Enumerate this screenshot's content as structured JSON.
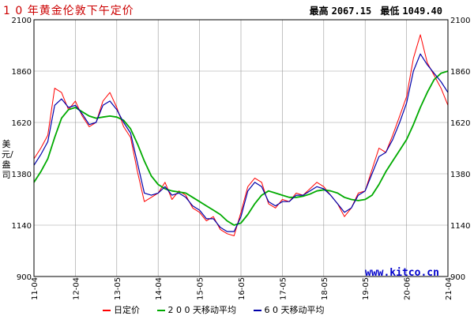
{
  "header": {
    "title": "1 0 年黄金伦敦下午定价",
    "high_label": "最高",
    "high_value": "2067.15",
    "low_label": "最低",
    "low_value": "1049.40"
  },
  "watermark": "www.kitco.cn",
  "colors": {
    "daily": "#ff0000",
    "ma200": "#00aa00",
    "ma60": "#0000aa",
    "grid": "#999999",
    "frame": "#000000"
  },
  "chart_data": {
    "type": "line",
    "ylabel": "美元/盎司",
    "ylim": [
      900,
      2100
    ],
    "y_ticks": [
      "900",
      "1140",
      "1380",
      "1620",
      "1860",
      "2100"
    ],
    "x_ticks": [
      "11-04",
      "12-04",
      "13-05",
      "14-04",
      "15-05",
      "16-05",
      "17-05",
      "18-05",
      "19-05",
      "20-06",
      "21-04"
    ],
    "grid": true,
    "series": [
      {
        "name": "日定价",
        "values": [
          1450,
          1500,
          1560,
          1780,
          1760,
          1680,
          1720,
          1650,
          1600,
          1620,
          1720,
          1760,
          1690,
          1600,
          1550,
          1390,
          1250,
          1270,
          1290,
          1340,
          1260,
          1300,
          1280,
          1220,
          1200,
          1160,
          1180,
          1120,
          1100,
          1090,
          1200,
          1320,
          1360,
          1340,
          1240,
          1220,
          1260,
          1250,
          1290,
          1280,
          1310,
          1340,
          1320,
          1280,
          1240,
          1180,
          1220,
          1290,
          1300,
          1400,
          1500,
          1480,
          1560,
          1650,
          1740,
          1920,
          2030,
          1900,
          1840,
          1780,
          1700
        ]
      },
      {
        "name": "2 0 0 天移动平均",
        "values": [
          1340,
          1390,
          1450,
          1550,
          1640,
          1680,
          1690,
          1670,
          1650,
          1640,
          1645,
          1650,
          1645,
          1630,
          1590,
          1520,
          1440,
          1370,
          1330,
          1310,
          1300,
          1295,
          1290,
          1270,
          1250,
          1230,
          1210,
          1190,
          1160,
          1140,
          1150,
          1190,
          1240,
          1280,
          1300,
          1290,
          1280,
          1270,
          1270,
          1275,
          1285,
          1300,
          1305,
          1300,
          1290,
          1270,
          1260,
          1255,
          1260,
          1280,
          1330,
          1390,
          1440,
          1490,
          1540,
          1610,
          1690,
          1760,
          1820,
          1850,
          1860
        ]
      },
      {
        "name": "6 0 天移动平均",
        "values": [
          1420,
          1470,
          1530,
          1700,
          1730,
          1690,
          1700,
          1660,
          1610,
          1620,
          1700,
          1720,
          1680,
          1620,
          1570,
          1430,
          1290,
          1280,
          1290,
          1320,
          1280,
          1290,
          1270,
          1230,
          1210,
          1170,
          1170,
          1130,
          1110,
          1110,
          1180,
          1300,
          1340,
          1320,
          1250,
          1230,
          1250,
          1250,
          1280,
          1280,
          1300,
          1320,
          1310,
          1280,
          1240,
          1200,
          1220,
          1280,
          1300,
          1380,
          1460,
          1480,
          1540,
          1620,
          1710,
          1860,
          1940,
          1890,
          1850,
          1810,
          1760
        ]
      }
    ]
  },
  "legend": [
    {
      "label": "日定价",
      "color": "#ff0000"
    },
    {
      "label": "2 0 0 天移动平均",
      "color": "#00aa00"
    },
    {
      "label": "6 0 天移动平均",
      "color": "#0000aa"
    }
  ]
}
